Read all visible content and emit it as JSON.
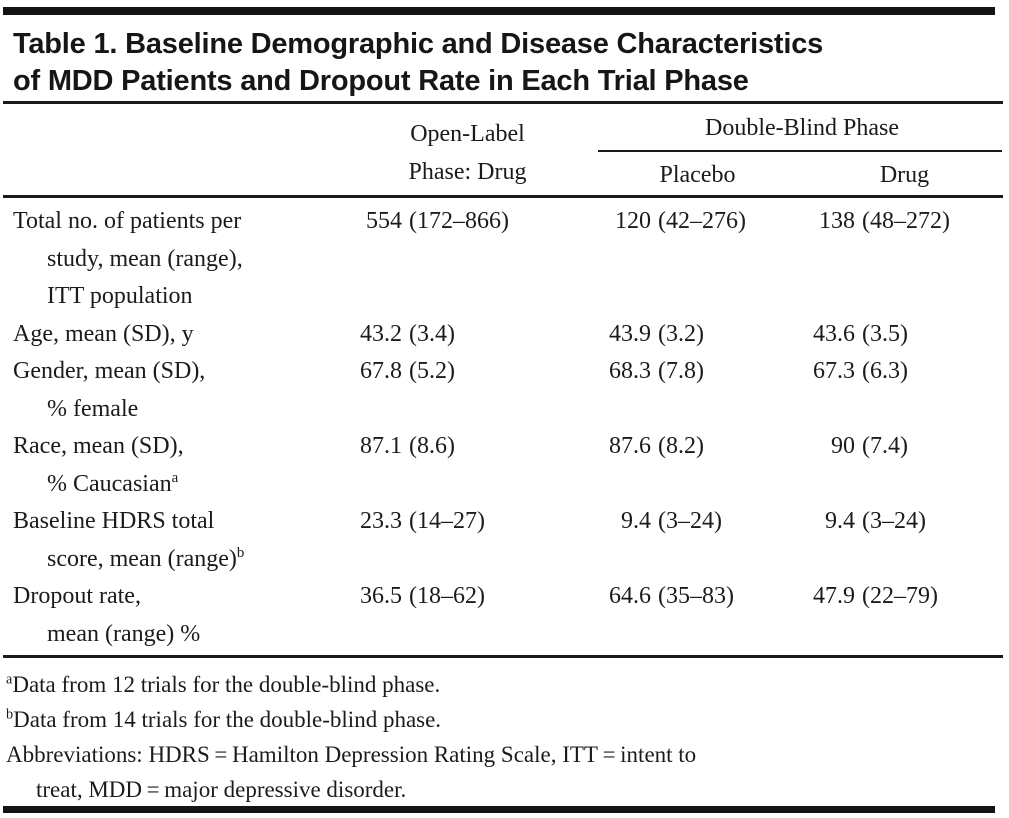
{
  "page": {
    "background": "#ffffff",
    "ink": "#1b1b1b",
    "bar_color": "#141414"
  },
  "title": "Table 1. Baseline Demographic and Disease Characteristics\nof MDD Patients and Dropout Rate in Each Trial Phase",
  "header": {
    "open_label": "Open-Label\nPhase: Drug",
    "double_blind": "Double-Blind Phase",
    "placebo": "Placebo",
    "drug": "Drug"
  },
  "rows": [
    {
      "label": "Total no. of patients per\nstudy, mean (range),\nITT population",
      "sup": "",
      "open_label": {
        "mean": "554",
        "range": "(172–866)"
      },
      "placebo": {
        "mean": "120",
        "range": "(42–276)"
      },
      "drug": {
        "mean": "138",
        "range": "(48–272)"
      }
    },
    {
      "label": "Age, mean (SD), y",
      "sup": "",
      "open_label": {
        "mean": "43.2",
        "range": "(3.4)"
      },
      "placebo": {
        "mean": "43.9",
        "range": "(3.2)"
      },
      "drug": {
        "mean": "43.6",
        "range": "(3.5)"
      }
    },
    {
      "label": "Gender, mean (SD),\n% female",
      "sup": "",
      "open_label": {
        "mean": "67.8",
        "range": "(5.2)"
      },
      "placebo": {
        "mean": "68.3",
        "range": "(7.8)"
      },
      "drug": {
        "mean": "67.3",
        "range": "(6.3)"
      }
    },
    {
      "label": "Race, mean (SD),\n% Caucasian",
      "sup": "a",
      "open_label": {
        "mean": "87.1",
        "range": "(8.6)"
      },
      "placebo": {
        "mean": "87.6",
        "range": "(8.2)"
      },
      "drug": {
        "mean": "90",
        "range": "(7.4)"
      }
    },
    {
      "label": "Baseline HDRS total\nscore, mean (range)",
      "sup": "b",
      "open_label": {
        "mean": "23.3",
        "range": "(14–27)"
      },
      "placebo": {
        "mean": "9.4",
        "range": "(3–24)"
      },
      "drug": {
        "mean": "9.4",
        "range": "(3–24)"
      }
    },
    {
      "label": "Dropout rate,\nmean (range) %",
      "sup": "",
      "open_label": {
        "mean": "36.5",
        "range": "(18–62)"
      },
      "placebo": {
        "mean": "64.6",
        "range": "(35–83)"
      },
      "drug": {
        "mean": "47.9",
        "range": "(22–79)"
      }
    }
  ],
  "footnotes": [
    {
      "sup": "a",
      "text": "Data from 12 trials for the double-blind phase."
    },
    {
      "sup": "b",
      "text": "Data from 14 trials for the double-blind phase."
    },
    {
      "sup": "",
      "text": "Abbreviations: HDRS = Hamilton Depression Rating Scale, ITT = intent to\ntreat, MDD = major depressive disorder."
    }
  ]
}
